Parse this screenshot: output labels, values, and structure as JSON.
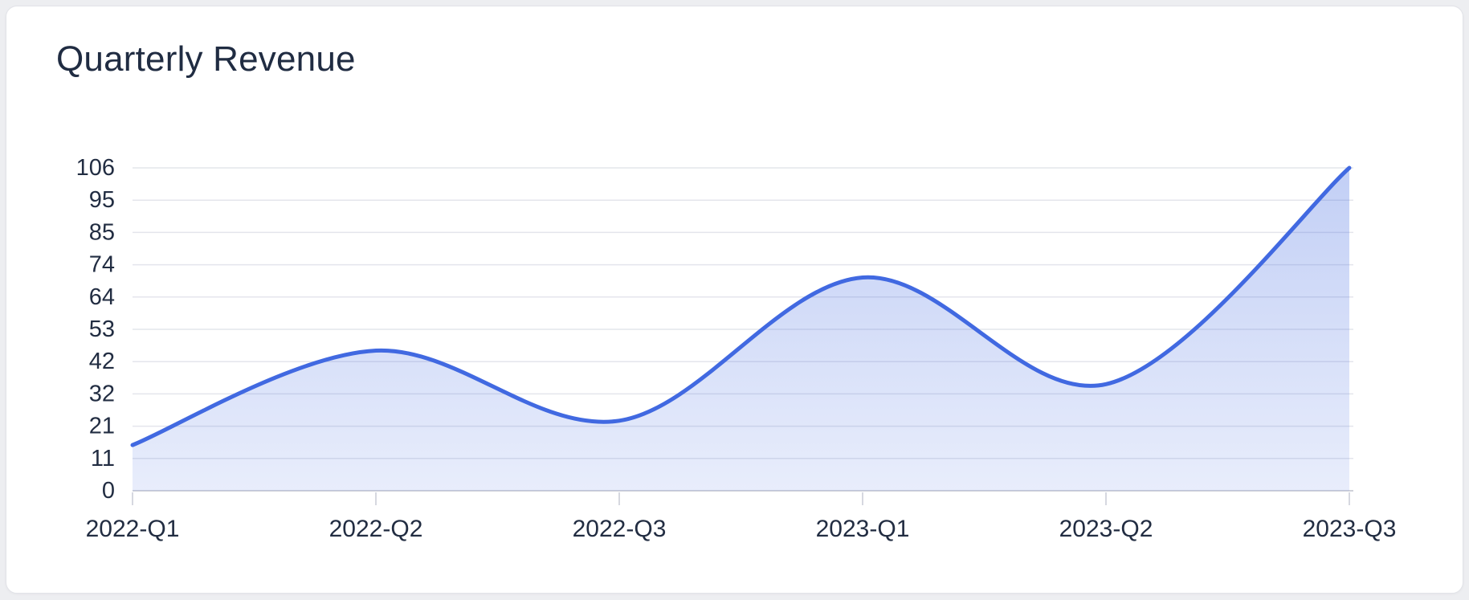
{
  "page": {
    "title": "Quarterly Revenue"
  },
  "chart_data": {
    "type": "area",
    "title": "Quarterly Revenue",
    "categories": [
      "2022-Q1",
      "2022-Q2",
      "2022-Q3",
      "2023-Q1",
      "2023-Q2",
      "2023-Q3"
    ],
    "values": [
      15,
      46,
      23,
      70,
      35,
      106
    ],
    "xlabel": "",
    "ylabel": "",
    "ylim": [
      0,
      106
    ],
    "ytick_labels": [
      "0",
      "11",
      "21",
      "32",
      "42",
      "53",
      "64",
      "74",
      "85",
      "95",
      "106"
    ],
    "grid": true,
    "legend": false,
    "smooth": true,
    "colors": {
      "line": "#4169e1",
      "fill_base": "#4169e1",
      "fill_opacity_top": "0.32",
      "fill_opacity_bottom": "0.12",
      "gridline": "#e4e5ec",
      "axis_line": "#cfd1d9",
      "tick_mark": "#d6d8e0",
      "tick_label": "#222d42",
      "title_text": "#202c42",
      "card_bg": "#ffffff",
      "page_bg": "#edeef1"
    }
  }
}
